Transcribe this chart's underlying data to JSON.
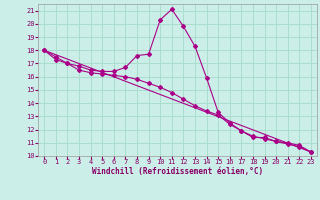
{
  "xlabel": "Windchill (Refroidissement éolien,°C)",
  "background_color": "#cceee8",
  "grid_color": "#aaddcc",
  "line_color": "#aa0088",
  "xlim_min": -0.5,
  "xlim_max": 23.5,
  "ylim_min": 10.0,
  "ylim_max": 21.5,
  "yticks": [
    10,
    11,
    12,
    13,
    14,
    15,
    16,
    17,
    18,
    19,
    20,
    21
  ],
  "xticks": [
    0,
    1,
    2,
    3,
    4,
    5,
    6,
    7,
    8,
    9,
    10,
    11,
    12,
    13,
    14,
    15,
    16,
    17,
    18,
    19,
    20,
    21,
    22,
    23
  ],
  "series1_x": [
    0,
    1,
    2,
    3,
    4,
    5,
    6,
    7,
    8,
    9,
    10,
    11,
    12,
    13,
    14,
    15,
    16,
    17,
    18,
    19,
    20,
    21,
    22,
    23
  ],
  "series1_y": [
    18.0,
    17.5,
    17.0,
    16.8,
    16.5,
    16.4,
    16.4,
    16.7,
    17.6,
    17.7,
    20.3,
    21.1,
    19.8,
    18.3,
    15.9,
    13.3,
    12.5,
    11.9,
    11.4,
    11.4,
    11.1,
    11.0,
    10.8,
    10.3
  ],
  "series2_x": [
    0,
    1,
    2,
    3,
    4,
    5,
    6,
    7,
    8,
    9,
    10,
    11,
    12,
    13,
    14,
    15,
    16,
    17,
    18,
    19,
    20,
    21,
    22,
    23
  ],
  "series2_y": [
    18.0,
    17.3,
    17.0,
    16.5,
    16.3,
    16.2,
    16.1,
    16.0,
    15.8,
    15.5,
    15.2,
    14.8,
    14.3,
    13.8,
    13.4,
    13.1,
    12.4,
    11.9,
    11.5,
    11.3,
    11.1,
    10.9,
    10.7,
    10.3
  ],
  "series3_x": [
    0,
    23
  ],
  "series3_y": [
    18.0,
    10.3
  ],
  "marker_size": 2.0,
  "line_width": 0.8
}
